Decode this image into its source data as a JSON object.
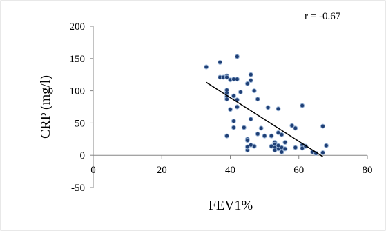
{
  "chart_data": {
    "type": "scatter",
    "xlabel": "FEV1%",
    "ylabel": "CRP (mg/l)",
    "xlim": [
      0,
      80
    ],
    "ylim": [
      -50,
      200
    ],
    "x_ticks": [
      0,
      20,
      40,
      60,
      80
    ],
    "y_ticks": [
      -50,
      0,
      50,
      100,
      150,
      200
    ],
    "x_tick_labels": [
      "0",
      "20",
      "40",
      "60",
      "80"
    ],
    "y_tick_labels": [
      "-50",
      "0",
      "50",
      "100",
      "150",
      "200"
    ],
    "grid": false,
    "legend": "none",
    "annotation": "r = -0.67",
    "colors": {
      "marker_fill": "#1f3f75",
      "marker_edge": "#9db7d8",
      "trendline": "#000000",
      "axis": "#868686",
      "frame": "#d0d0d0"
    },
    "trendline": {
      "x": [
        33,
        67
      ],
      "y": [
        113,
        -2
      ]
    },
    "points": [
      [
        33,
        137
      ],
      [
        37,
        144
      ],
      [
        37,
        121
      ],
      [
        38,
        121
      ],
      [
        39,
        123
      ],
      [
        39,
        121
      ],
      [
        40,
        117
      ],
      [
        41,
        118
      ],
      [
        42,
        118
      ],
      [
        42,
        153
      ],
      [
        39,
        97
      ],
      [
        39,
        101
      ],
      [
        39,
        91
      ],
      [
        39,
        87
      ],
      [
        41,
        92
      ],
      [
        42,
        86
      ],
      [
        42,
        75
      ],
      [
        43,
        98
      ],
      [
        45,
        111
      ],
      [
        46,
        116
      ],
      [
        46,
        125
      ],
      [
        47,
        100
      ],
      [
        48,
        87
      ],
      [
        51,
        74
      ],
      [
        54,
        72
      ],
      [
        61,
        77
      ],
      [
        40,
        71
      ],
      [
        41,
        53
      ],
      [
        41,
        43
      ],
      [
        39,
        30
      ],
      [
        44,
        43
      ],
      [
        45,
        25
      ],
      [
        45,
        23
      ],
      [
        46,
        56
      ],
      [
        47,
        14
      ],
      [
        49,
        42
      ],
      [
        48,
        33
      ],
      [
        50,
        30
      ],
      [
        52,
        30
      ],
      [
        53,
        20
      ],
      [
        52,
        14
      ],
      [
        54,
        35
      ],
      [
        55,
        32
      ],
      [
        53,
        17
      ],
      [
        53,
        12
      ],
      [
        54,
        10
      ],
      [
        55,
        12
      ],
      [
        53,
        8
      ],
      [
        54,
        15
      ],
      [
        55,
        5
      ],
      [
        56,
        20
      ],
      [
        56,
        10
      ],
      [
        58,
        46
      ],
      [
        59,
        42
      ],
      [
        59,
        12
      ],
      [
        61,
        16
      ],
      [
        61,
        11
      ],
      [
        62,
        14
      ],
      [
        64,
        5
      ],
      [
        65,
        3
      ],
      [
        67,
        45
      ],
      [
        67,
        4
      ],
      [
        68,
        15
      ],
      [
        45,
        8
      ],
      [
        45,
        13
      ],
      [
        46,
        16
      ]
    ]
  }
}
